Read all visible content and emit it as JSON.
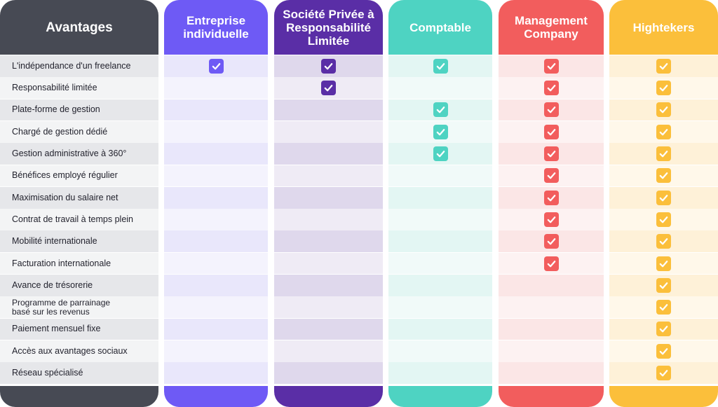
{
  "columns": [
    {
      "id": "avantages",
      "title": "Avantages",
      "head_color": "#474a54",
      "body_a": "#e6e7ea",
      "body_b": "#f3f4f5"
    },
    {
      "id": "entreprise",
      "title": "Entreprise individuelle",
      "head_color": "#6e5af5",
      "body_a": "#e9e7fb",
      "body_b": "#f4f3fd",
      "check_color": "#6e5af5"
    },
    {
      "id": "sprl",
      "title": "Société Privée à Responsabilité Limitée",
      "head_color": "#5a2ea6",
      "body_a": "#dfd8ec",
      "body_b": "#efebf5",
      "check_color": "#5a2ea6"
    },
    {
      "id": "comptable",
      "title": "Comptable",
      "head_color": "#4ed3c2",
      "body_a": "#e3f6f3",
      "body_b": "#f1faf9",
      "check_color": "#4ed3c2"
    },
    {
      "id": "management",
      "title": "Management Company",
      "head_color": "#f25d5d",
      "body_a": "#fbe6e6",
      "body_b": "#fdf2f2",
      "check_color": "#f25d5d"
    },
    {
      "id": "hightekers",
      "title": "Hightekers",
      "head_color": "#fbbf3b",
      "body_a": "#fef1d8",
      "body_b": "#fff8ea",
      "check_color": "#fbbf3b"
    }
  ],
  "rows": [
    {
      "label": "L'indépendance d'un freelance",
      "checks": [
        true,
        true,
        true,
        true,
        true
      ]
    },
    {
      "label": "Responsabilité limitée",
      "checks": [
        false,
        true,
        false,
        true,
        true
      ]
    },
    {
      "label": "Plate-forme de gestion",
      "checks": [
        false,
        false,
        true,
        true,
        true
      ]
    },
    {
      "label": "Chargé de gestion dédié",
      "checks": [
        false,
        false,
        true,
        true,
        true
      ]
    },
    {
      "label": "Gestion administrative à 360°",
      "checks": [
        false,
        false,
        true,
        true,
        true
      ]
    },
    {
      "label": "Bénéfices employé régulier",
      "checks": [
        false,
        false,
        false,
        true,
        true
      ]
    },
    {
      "label": "Maximisation du salaire net",
      "checks": [
        false,
        false,
        false,
        true,
        true
      ]
    },
    {
      "label": "Contrat de travail à temps plein",
      "checks": [
        false,
        false,
        false,
        true,
        true
      ]
    },
    {
      "label": "Mobilité internationale",
      "checks": [
        false,
        false,
        false,
        true,
        true
      ]
    },
    {
      "label": "Facturation internationale",
      "checks": [
        false,
        false,
        false,
        true,
        true
      ]
    },
    {
      "label": "Avance de trésorerie",
      "checks": [
        false,
        false,
        false,
        false,
        true
      ]
    },
    {
      "label": "Programme de parrainage basé sur les revenus",
      "checks": [
        false,
        false,
        false,
        false,
        true
      ]
    },
    {
      "label": "Paiement mensuel fixe",
      "checks": [
        false,
        false,
        false,
        false,
        true
      ]
    },
    {
      "label": "Accès aux avantages sociaux",
      "checks": [
        false,
        false,
        false,
        false,
        true
      ]
    },
    {
      "label": "Réseau spécialisé",
      "checks": [
        false,
        false,
        false,
        false,
        true
      ]
    }
  ],
  "icons": {
    "check": "checkmark-icon"
  }
}
